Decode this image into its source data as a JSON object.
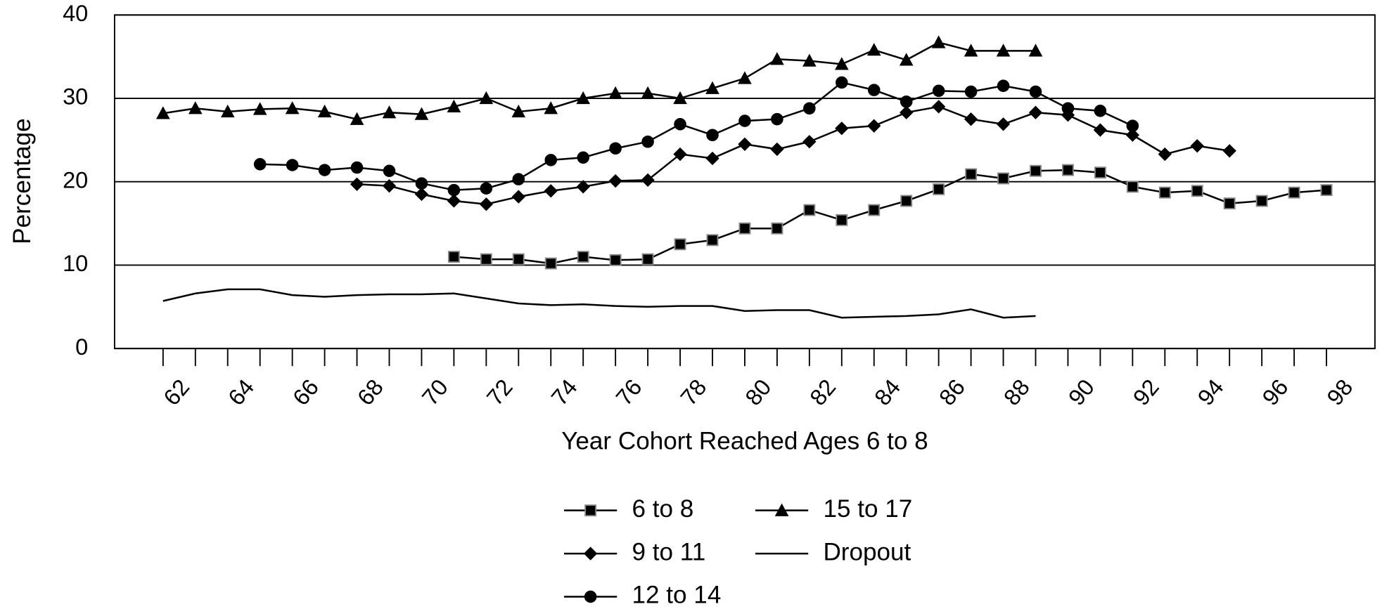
{
  "chart_data": {
    "type": "line",
    "y_label": "Percentage",
    "x_label": "Year Cohort Reached Ages 6 to 8",
    "categories": [
      "62",
      null,
      "64",
      null,
      "66",
      null,
      "68",
      null,
      "70",
      null,
      "72",
      null,
      "74",
      null,
      "76",
      null,
      "78",
      null,
      "80",
      null,
      "82",
      null,
      "84",
      null,
      "86",
      null,
      "88",
      null,
      "90",
      null,
      "92",
      null,
      "94",
      null,
      "96",
      null,
      "98"
    ],
    "series": [
      {
        "name": "6 to 8",
        "color": "#000000",
        "marker": "square",
        "values": [
          null,
          null,
          null,
          null,
          null,
          null,
          null,
          null,
          null,
          11.0,
          10.7,
          10.7,
          10.2,
          11.0,
          10.6,
          10.7,
          12.5,
          13.0,
          14.4,
          14.4,
          16.6,
          15.4,
          16.6,
          17.7,
          19.1,
          20.9,
          20.4,
          21.3,
          21.4,
          21.1,
          19.4,
          18.7,
          18.9,
          17.4,
          17.7,
          18.7,
          19.0
        ]
      },
      {
        "name": "9 to 11",
        "color": "#000000",
        "marker": "diamond",
        "values": [
          null,
          null,
          null,
          null,
          null,
          null,
          19.7,
          19.5,
          18.5,
          17.7,
          17.3,
          18.2,
          18.9,
          19.4,
          20.1,
          20.2,
          23.3,
          22.8,
          24.5,
          23.9,
          24.8,
          26.4,
          26.7,
          28.3,
          29.0,
          27.5,
          26.9,
          28.3,
          28.0,
          26.2,
          25.6,
          23.3,
          24.3,
          23.7,
          null,
          null,
          null
        ]
      },
      {
        "name": "12 to 14",
        "color": "#000000",
        "marker": "circle",
        "values": [
          null,
          null,
          null,
          22.1,
          22.0,
          21.4,
          21.7,
          21.3,
          19.8,
          19.0,
          19.2,
          20.3,
          22.6,
          22.9,
          24.0,
          24.8,
          26.9,
          25.6,
          27.3,
          27.5,
          28.8,
          31.9,
          31.0,
          29.6,
          30.9,
          30.8,
          31.5,
          30.8,
          28.8,
          28.5,
          26.7,
          null,
          null,
          null,
          null,
          null,
          null
        ]
      },
      {
        "name": "15 to 17",
        "color": "#000000",
        "marker": "triangle",
        "values": [
          28.2,
          28.8,
          28.4,
          28.7,
          28.8,
          28.4,
          27.5,
          28.3,
          28.1,
          29.0,
          30.0,
          28.4,
          28.8,
          30.0,
          30.6,
          30.6,
          30.0,
          31.2,
          32.4,
          34.7,
          34.5,
          34.1,
          35.8,
          34.6,
          36.7,
          35.7,
          35.7,
          35.7,
          null,
          null,
          null,
          null,
          null,
          null,
          null,
          null,
          null
        ]
      },
      {
        "name": "Dropout",
        "color": "#000000",
        "marker": "none",
        "values": [
          5.7,
          6.6,
          7.1,
          7.1,
          6.4,
          6.2,
          6.4,
          6.5,
          6.5,
          6.6,
          6.0,
          5.4,
          5.2,
          5.3,
          5.1,
          5.0,
          5.1,
          5.1,
          4.5,
          4.6,
          4.6,
          3.7,
          3.8,
          3.9,
          4.1,
          4.7,
          3.7,
          3.9,
          null,
          null,
          null,
          null,
          null,
          null,
          null,
          null,
          null
        ]
      }
    ],
    "ylim": [
      0,
      40
    ],
    "yticks": [
      0,
      10,
      20,
      30,
      40
    ],
    "grid": true
  }
}
